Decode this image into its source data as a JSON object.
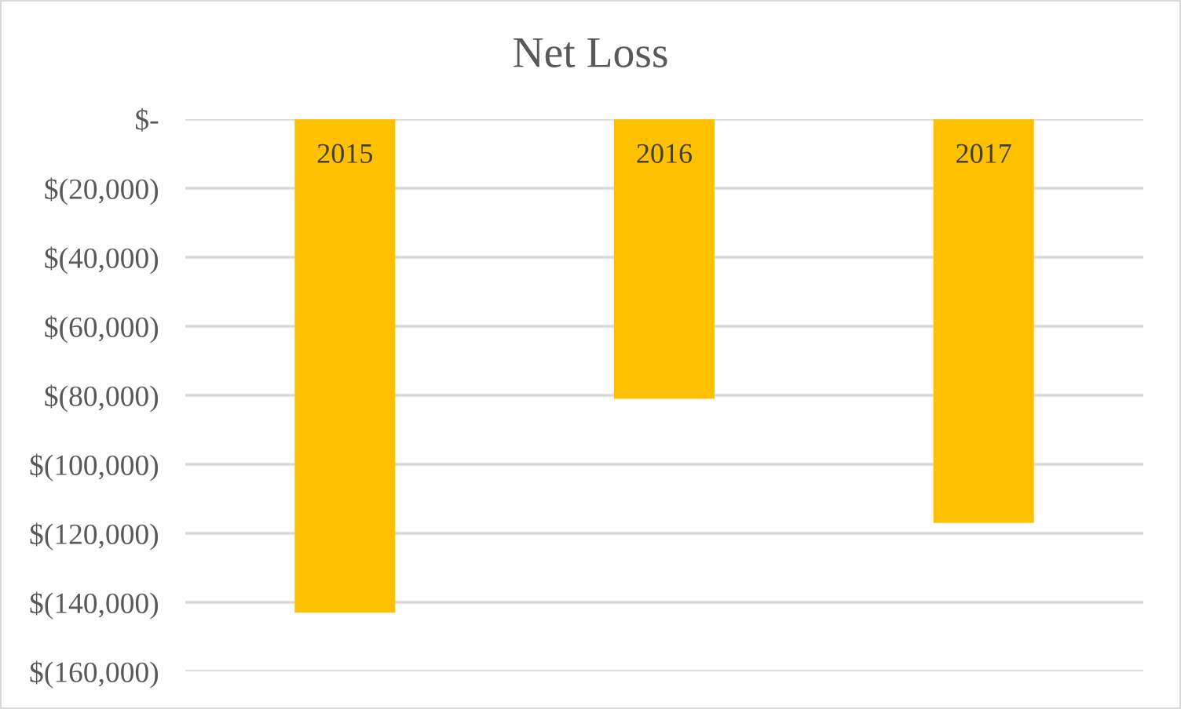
{
  "chart_data": {
    "type": "bar",
    "title": "Net Loss",
    "categories": [
      "2015",
      "2016",
      "2017"
    ],
    "values": [
      -143000,
      -81000,
      -117000
    ],
    "color": "#ffc000",
    "ylim": [
      -160000,
      0
    ],
    "yticks": [
      {
        "value": 0,
        "label": "$-"
      },
      {
        "value": -20000,
        "label": "$(20,000)"
      },
      {
        "value": -40000,
        "label": "$(40,000)"
      },
      {
        "value": -60000,
        "label": "$(60,000)"
      },
      {
        "value": -80000,
        "label": "$(80,000)"
      },
      {
        "value": -100000,
        "label": "$(100,000)"
      },
      {
        "value": -120000,
        "label": "$(120,000)"
      },
      {
        "value": -140000,
        "label": "$(140,000)"
      },
      {
        "value": -160000,
        "label": "$(160,000)"
      }
    ],
    "grid": "y",
    "legend": false
  }
}
